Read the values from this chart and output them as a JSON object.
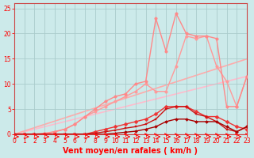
{
  "bg_color": "#cceaea",
  "grid_color": "#aacccc",
  "xlabel": "Vent moyen/en rafales ( km/h )",
  "xlim": [
    0,
    23
  ],
  "ylim": [
    0,
    26
  ],
  "yticks": [
    0,
    5,
    10,
    15,
    20,
    25
  ],
  "xticks": [
    0,
    1,
    2,
    3,
    4,
    5,
    6,
    7,
    8,
    9,
    10,
    11,
    12,
    13,
    14,
    15,
    16,
    17,
    18,
    19,
    20,
    21,
    22,
    23
  ],
  "x": [
    0,
    1,
    2,
    3,
    4,
    5,
    6,
    7,
    8,
    9,
    10,
    11,
    12,
    13,
    14,
    15,
    16,
    17,
    18,
    19,
    20,
    21,
    22,
    23
  ],
  "lines": [
    {
      "y": [
        0,
        0.5,
        1.0,
        1.5,
        2.0,
        2.5,
        3.0,
        3.5,
        4.0,
        4.5,
        5.0,
        5.5,
        6.0,
        6.5,
        7.0,
        7.5,
        8.0,
        8.5,
        9.0,
        9.5,
        10.0,
        10.5,
        11.0,
        11.5
      ],
      "color": "#ffbbcc",
      "lw": 1.2,
      "marker": null,
      "ms": 0,
      "zorder": 1
    },
    {
      "y": [
        0,
        0.65,
        1.3,
        1.95,
        2.6,
        3.25,
        3.9,
        4.55,
        5.2,
        5.85,
        6.5,
        7.15,
        7.8,
        8.45,
        9.1,
        9.75,
        10.4,
        11.05,
        11.7,
        12.35,
        13.0,
        13.65,
        14.3,
        14.95
      ],
      "color": "#ffaaaa",
      "lw": 1.2,
      "marker": null,
      "ms": 0,
      "zorder": 1
    },
    {
      "y": [
        0,
        0,
        0,
        0,
        0.5,
        1.0,
        2.0,
        3.5,
        4.5,
        5.5,
        6.5,
        7.5,
        8.5,
        10.0,
        8.5,
        8.5,
        13.5,
        19.5,
        19.0,
        19.5,
        13.5,
        10.5,
        5.5,
        11.5
      ],
      "color": "#ff9999",
      "lw": 1.0,
      "marker": "o",
      "ms": 2.5,
      "zorder": 2
    },
    {
      "y": [
        0,
        0,
        0,
        0.2,
        0.5,
        1.0,
        2.0,
        3.5,
        5.0,
        6.5,
        7.5,
        8.0,
        10.0,
        10.5,
        23.0,
        16.5,
        24.0,
        20.0,
        19.5,
        19.5,
        19.0,
        5.5,
        5.5,
        11.5
      ],
      "color": "#ff8888",
      "lw": 1.0,
      "marker": "o",
      "ms": 2.5,
      "zorder": 3
    },
    {
      "y": [
        0,
        0,
        0,
        0,
        0,
        0,
        0,
        0,
        0.5,
        1.0,
        1.5,
        2.0,
        2.5,
        3.0,
        4.0,
        5.5,
        5.5,
        5.5,
        4.5,
        3.5,
        3.5,
        2.5,
        1.5,
        1.0
      ],
      "color": "#ee3333",
      "lw": 1.0,
      "marker": "D",
      "ms": 2.5,
      "zorder": 4
    },
    {
      "y": [
        0,
        0,
        0,
        0,
        0,
        0,
        0,
        0,
        0.2,
        0.5,
        0.8,
        1.2,
        1.5,
        2.0,
        3.0,
        5.0,
        5.5,
        5.5,
        4.0,
        3.5,
        2.5,
        1.0,
        0.5,
        1.5
      ],
      "color": "#cc1111",
      "lw": 1.0,
      "marker": "s",
      "ms": 2,
      "zorder": 4
    },
    {
      "y": [
        0,
        0,
        0,
        0,
        0,
        0,
        0,
        0,
        0,
        0,
        0.2,
        0.4,
        0.6,
        1.0,
        1.5,
        2.5,
        3.0,
        3.0,
        2.5,
        2.5,
        2.5,
        1.5,
        0.5,
        1.5
      ],
      "color": "#aa0000",
      "lw": 1.0,
      "marker": "D",
      "ms": 2,
      "zorder": 5
    },
    {
      "y": [
        0,
        0,
        0,
        0,
        0,
        0,
        0,
        0,
        0,
        0,
        0,
        0,
        0,
        0,
        0,
        0,
        0,
        0,
        0,
        0,
        0,
        0,
        0,
        0
      ],
      "color": "#ff2222",
      "lw": 0.8,
      "marker": ">",
      "ms": 3,
      "zorder": 6
    }
  ],
  "tick_fontsize": 5.5,
  "axis_label_fontsize": 7,
  "axis_label_fontweight": "bold"
}
